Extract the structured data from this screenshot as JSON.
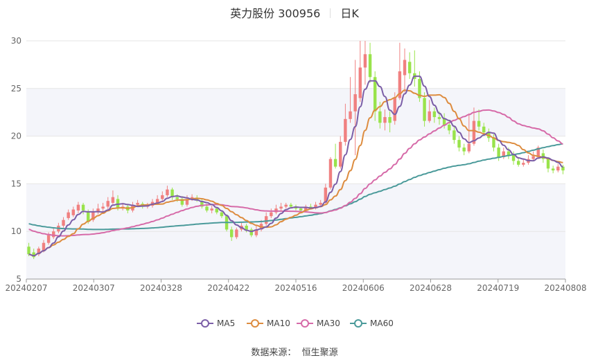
{
  "header": {
    "title": "英力股份 300956",
    "period": "日K"
  },
  "source": "数据来源：  恒生聚源",
  "colors": {
    "up": "#f08080",
    "down": "#99e34b",
    "MA5": "#7b5ea7",
    "MA10": "#dd8c3f",
    "MA30": "#d66aa8",
    "MA60": "#4a9a9a"
  },
  "chart_data": {
    "type": "candlestick",
    "ylim": [
      5,
      30
    ],
    "yticks": [
      "5",
      "10",
      "15",
      "20",
      "25",
      "30"
    ],
    "xticks": [
      "20240207",
      "20240307",
      "20240328",
      "20240422",
      "20240516",
      "20240606",
      "20240628",
      "20240719",
      "20240808"
    ],
    "legend": [
      "MA5",
      "MA10",
      "MA30",
      "MA60"
    ],
    "legend_position": "bottom",
    "candles": [
      [
        8.4,
        7.6,
        8.8,
        7.4
      ],
      [
        7.8,
        7.3,
        8.2,
        7.1
      ],
      [
        7.6,
        8.2,
        8.4,
        7.4
      ],
      [
        8.0,
        8.8,
        9.1,
        7.8
      ],
      [
        8.8,
        9.6,
        9.9,
        8.6
      ],
      [
        9.4,
        10.0,
        10.3,
        9.2
      ],
      [
        10.0,
        10.6,
        10.9,
        9.8
      ],
      [
        10.6,
        11.2,
        11.5,
        10.4
      ],
      [
        11.4,
        12.0,
        12.3,
        11.2
      ],
      [
        11.7,
        12.3,
        12.6,
        11.5
      ],
      [
        12.2,
        12.8,
        13.1,
        11.9
      ],
      [
        12.8,
        12.2,
        13.0,
        11.8
      ],
      [
        12.0,
        11.0,
        12.3,
        10.8
      ],
      [
        11.2,
        12.0,
        12.4,
        11.0
      ],
      [
        12.0,
        12.4,
        12.9,
        11.8
      ],
      [
        12.4,
        12.6,
        13.0,
        12.1
      ],
      [
        12.6,
        13.2,
        13.6,
        12.3
      ],
      [
        13.0,
        13.6,
        14.3,
        12.8
      ],
      [
        13.4,
        12.5,
        13.8,
        12.2
      ],
      [
        12.4,
        12.6,
        13.0,
        12.2
      ],
      [
        12.6,
        12.2,
        12.9,
        11.9
      ],
      [
        12.2,
        12.8,
        13.1,
        12.0
      ],
      [
        12.8,
        13.0,
        13.3,
        12.6
      ],
      [
        12.9,
        12.7,
        13.1,
        12.4
      ],
      [
        12.6,
        12.7,
        13.0,
        12.4
      ],
      [
        12.7,
        13.1,
        13.4,
        12.5
      ],
      [
        13.0,
        13.4,
        13.8,
        12.8
      ],
      [
        13.4,
        13.8,
        14.2,
        13.2
      ],
      [
        13.8,
        14.4,
        14.8,
        13.6
      ],
      [
        14.4,
        13.6,
        14.6,
        13.3
      ],
      [
        13.6,
        13.4,
        13.9,
        13.1
      ],
      [
        13.4,
        12.8,
        13.7,
        12.6
      ],
      [
        12.8,
        13.4,
        13.8,
        12.6
      ],
      [
        13.4,
        13.6,
        13.9,
        13.2
      ],
      [
        13.5,
        13.3,
        13.8,
        13.1
      ],
      [
        13.2,
        12.6,
        13.4,
        12.4
      ],
      [
        12.6,
        12.2,
        12.9,
        12.0
      ],
      [
        12.2,
        12.4,
        12.7,
        11.9
      ],
      [
        12.4,
        12.0,
        12.6,
        11.8
      ],
      [
        12.0,
        11.6,
        12.2,
        11.4
      ],
      [
        11.6,
        10.2,
        11.8,
        10.0
      ],
      [
        10.2,
        9.4,
        10.5,
        9.0
      ],
      [
        9.4,
        10.2,
        10.4,
        9.2
      ],
      [
        10.2,
        10.6,
        10.9,
        10.0
      ],
      [
        10.6,
        10.2,
        10.8,
        9.9
      ],
      [
        10.2,
        9.6,
        10.4,
        9.4
      ],
      [
        9.6,
        10.2,
        10.6,
        9.4
      ],
      [
        10.2,
        10.8,
        11.2,
        10.0
      ],
      [
        10.8,
        11.6,
        12.0,
        10.6
      ],
      [
        11.6,
        12.0,
        12.4,
        11.4
      ],
      [
        12.0,
        12.4,
        12.8,
        11.8
      ],
      [
        12.4,
        12.6,
        13.0,
        12.2
      ],
      [
        12.6,
        12.8,
        13.0,
        12.4
      ],
      [
        12.8,
        12.6,
        13.0,
        12.4
      ],
      [
        12.6,
        12.4,
        12.8,
        12.2
      ],
      [
        12.4,
        12.2,
        12.6,
        11.9
      ],
      [
        12.2,
        12.6,
        12.8,
        12.0
      ],
      [
        12.6,
        12.5,
        12.9,
        12.3
      ],
      [
        12.5,
        12.8,
        13.1,
        12.3
      ],
      [
        12.8,
        13.0,
        13.3,
        12.6
      ],
      [
        13.0,
        14.6,
        15.0,
        12.8
      ],
      [
        14.6,
        17.6,
        17.8,
        14.4
      ],
      [
        17.6,
        16.8,
        19.2,
        16.6
      ],
      [
        16.8,
        19.4,
        20.0,
        16.6
      ],
      [
        19.4,
        21.8,
        23.4,
        19.0
      ],
      [
        21.8,
        22.6,
        26.2,
        21.4
      ],
      [
        22.6,
        24.4,
        28.0,
        18.0
      ],
      [
        24.0,
        27.2,
        30.0,
        23.6
      ],
      [
        27.2,
        28.6,
        30.0,
        25.4
      ],
      [
        28.6,
        26.2,
        29.8,
        25.6
      ],
      [
        26.2,
        22.6,
        26.8,
        21.6
      ],
      [
        22.6,
        21.4,
        23.6,
        20.8
      ],
      [
        21.4,
        22.0,
        22.8,
        20.6
      ],
      [
        22.0,
        21.4,
        22.6,
        20.4
      ],
      [
        21.6,
        24.0,
        24.6,
        21.2
      ],
      [
        24.0,
        26.8,
        29.8,
        23.8
      ],
      [
        26.4,
        28.0,
        29.2,
        24.6
      ],
      [
        27.8,
        26.6,
        28.8,
        26.0
      ],
      [
        26.6,
        26.0,
        29.0,
        25.2
      ],
      [
        26.0,
        24.0,
        26.8,
        23.6
      ],
      [
        24.0,
        21.6,
        24.6,
        21.0
      ],
      [
        21.6,
        22.6,
        23.8,
        21.4
      ],
      [
        22.6,
        22.0,
        23.0,
        21.4
      ],
      [
        22.0,
        21.8,
        22.6,
        21.2
      ],
      [
        21.8,
        21.2,
        22.4,
        20.8
      ],
      [
        21.2,
        20.6,
        21.6,
        20.2
      ],
      [
        20.6,
        19.6,
        21.0,
        19.2
      ],
      [
        19.6,
        18.8,
        20.0,
        18.4
      ],
      [
        18.8,
        18.4,
        19.2,
        18.0
      ],
      [
        18.4,
        19.2,
        22.4,
        18.2
      ],
      [
        19.2,
        21.6,
        23.0,
        19.0
      ],
      [
        21.6,
        21.0,
        22.8,
        20.6
      ],
      [
        21.0,
        20.4,
        21.4,
        20.0
      ],
      [
        20.4,
        19.8,
        20.8,
        19.4
      ],
      [
        19.8,
        18.8,
        20.2,
        18.4
      ],
      [
        18.8,
        17.8,
        19.2,
        17.4
      ],
      [
        17.8,
        18.4,
        18.8,
        17.6
      ],
      [
        18.4,
        18.0,
        18.8,
        17.6
      ],
      [
        18.0,
        17.4,
        18.4,
        17.0
      ],
      [
        17.4,
        17.0,
        17.8,
        16.8
      ],
      [
        17.0,
        17.2,
        17.6,
        16.8
      ],
      [
        17.2,
        17.6,
        18.0,
        17.0
      ],
      [
        17.6,
        17.9,
        18.4,
        17.4
      ],
      [
        17.8,
        18.8,
        19.0,
        17.6
      ],
      [
        18.2,
        17.6,
        18.6,
        17.2
      ],
      [
        17.6,
        16.6,
        17.8,
        16.2
      ],
      [
        16.6,
        16.4,
        16.9,
        16.1
      ],
      [
        16.4,
        16.8,
        17.1,
        16.2
      ],
      [
        16.8,
        16.4,
        17.0,
        16.0
      ]
    ]
  }
}
